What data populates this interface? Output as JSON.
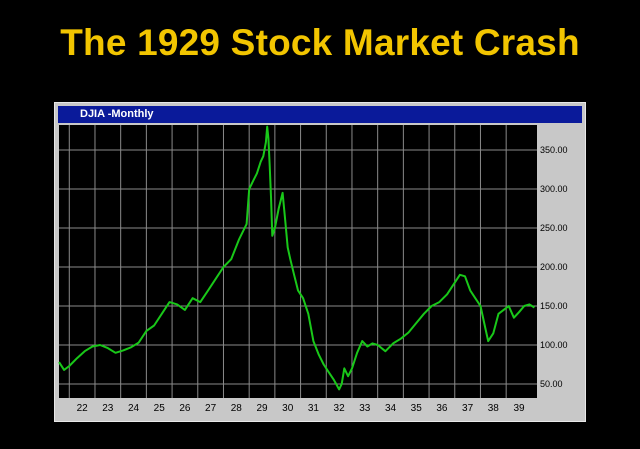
{
  "slide": {
    "title": "The 1929 Stock Market Crash"
  },
  "window": {
    "title": "DJIA -Monthly"
  },
  "colors": {
    "background": "#000000",
    "title": "#f2c500",
    "titlebar": "#0a1a9a",
    "plot_background": "#000000",
    "grid": "#8a8a8a",
    "line": "#19c819",
    "frame": "#c8c8c8"
  },
  "chart_data": {
    "type": "line",
    "title": "DJIA -Monthly",
    "xlabel": "",
    "ylabel": "",
    "x_ticks": [
      "22",
      "23",
      "24",
      "25",
      "26",
      "27",
      "28",
      "29",
      "30",
      "31",
      "32",
      "33",
      "34",
      "35",
      "36",
      "37",
      "38",
      "39"
    ],
    "y_ticks": [
      "50.00",
      "100.00",
      "150.00",
      "200.00",
      "250.00",
      "300.00",
      "350.00"
    ],
    "y_tick_values": [
      50,
      100,
      150,
      200,
      250,
      300,
      350
    ],
    "xlim": [
      1921.6,
      1940.2
    ],
    "ylim": [
      32,
      382
    ],
    "y_axis_side": "right",
    "grid": true,
    "legend": "none",
    "series": [
      {
        "x": [
          1921.6,
          1921.8,
          1922.0,
          1922.3,
          1922.6,
          1922.9,
          1923.2,
          1923.5,
          1923.8,
          1924.1,
          1924.4,
          1924.7,
          1925.0,
          1925.3,
          1925.6,
          1925.9,
          1926.2,
          1926.5,
          1926.8,
          1927.1,
          1927.4,
          1927.7,
          1928.0,
          1928.3,
          1928.6,
          1928.9,
          1929.0,
          1929.15,
          1929.3,
          1929.45,
          1929.55,
          1929.65,
          1929.7,
          1929.75,
          1929.8,
          1929.85,
          1929.9,
          1930.0,
          1930.15,
          1930.3,
          1930.4,
          1930.5,
          1930.6,
          1930.75,
          1930.9,
          1931.1,
          1931.3,
          1931.5,
          1931.7,
          1931.9,
          1932.1,
          1932.3,
          1932.5,
          1932.6,
          1932.7,
          1932.85,
          1933.0,
          1933.2,
          1933.4,
          1933.6,
          1933.8,
          1934.0,
          1934.3,
          1934.6,
          1934.9,
          1935.2,
          1935.5,
          1935.8,
          1936.1,
          1936.4,
          1936.7,
          1937.0,
          1937.2,
          1937.4,
          1937.6,
          1937.8,
          1938.0,
          1938.2,
          1938.3,
          1938.5,
          1938.7,
          1938.9,
          1939.1,
          1939.3,
          1939.5,
          1939.7,
          1939.9,
          1940.1
        ],
        "values": [
          78,
          68,
          73,
          83,
          92,
          98,
          100,
          96,
          90,
          93,
          97,
          103,
          118,
          125,
          140,
          155,
          152,
          145,
          160,
          155,
          170,
          185,
          200,
          210,
          235,
          255,
          300,
          310,
          320,
          335,
          342,
          360,
          380,
          365,
          330,
          290,
          240,
          250,
          275,
          295,
          260,
          225,
          210,
          190,
          170,
          160,
          140,
          105,
          88,
          75,
          65,
          55,
          43,
          50,
          70,
          60,
          70,
          90,
          105,
          98,
          102,
          100,
          92,
          102,
          108,
          116,
          128,
          140,
          150,
          155,
          165,
          180,
          190,
          188,
          170,
          160,
          150,
          120,
          105,
          115,
          140,
          145,
          150,
          135,
          142,
          150,
          152,
          148
        ]
      }
    ]
  }
}
